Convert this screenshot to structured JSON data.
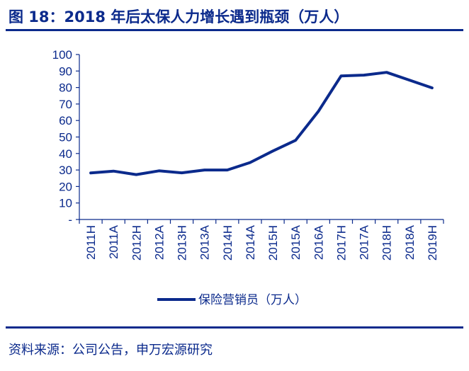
{
  "title": "图 18：2018 年后太保人力增长遇到瓶颈（万人）",
  "source": "资料来源：公司公告，申万宏源研究",
  "colors": {
    "accent": "#0b2a8c",
    "series": "#0b2a8c"
  },
  "chart_data": {
    "type": "line",
    "title": "图 18：2018 年后太保人力增长遇到瓶颈（万人）",
    "xlabel": "",
    "ylabel": "",
    "categories": [
      "2011H",
      "2011A",
      "2012H",
      "2012A",
      "2013H",
      "2013A",
      "2014H",
      "2014A",
      "2015H",
      "2015A",
      "2016A",
      "2017H",
      "2017A",
      "2018H",
      "2018A",
      "2019H"
    ],
    "series": [
      {
        "name": "保险营销员（万人）",
        "values": [
          28.2,
          29.3,
          27.2,
          29.5,
          28.3,
          30.0,
          30.0,
          34.5,
          41.5,
          48.0,
          65.5,
          87.0,
          87.5,
          89.2,
          84.5,
          79.8
        ]
      }
    ],
    "ylim": [
      0,
      100
    ],
    "yticks": [
      "-",
      "10",
      "20",
      "30",
      "40",
      "50",
      "60",
      "70",
      "80",
      "90",
      "100"
    ],
    "grid": false,
    "legend": "bottom"
  }
}
